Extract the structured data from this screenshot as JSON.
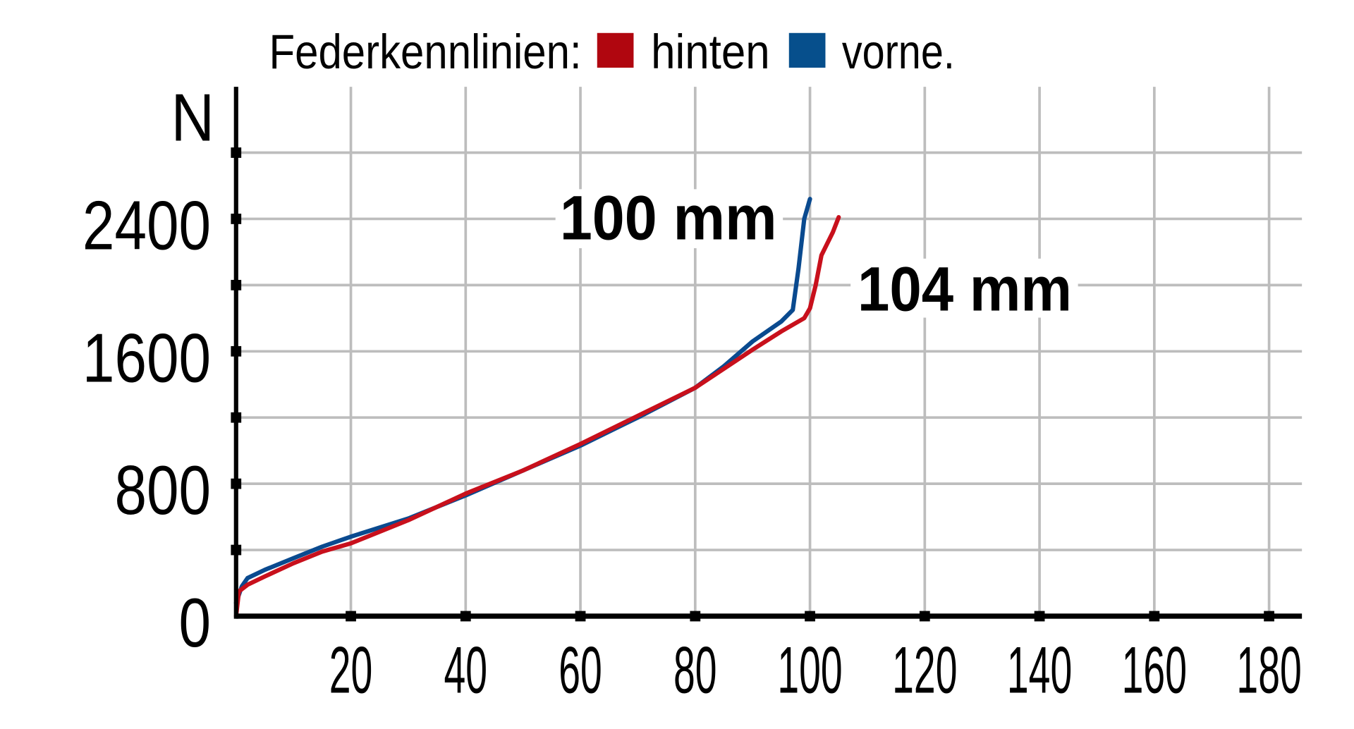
{
  "chart_data": {
    "type": "line",
    "title": "Federkennlinien:",
    "legend": [
      {
        "name": "hinten",
        "color": "#b0060f"
      },
      {
        "name": "vorne.",
        "color": "#064f8c"
      }
    ],
    "legend_placement": "top",
    "ylabel": "N",
    "xlabel": "",
    "xlim": [
      0,
      185
    ],
    "ylim": [
      0,
      2800
    ],
    "xticks": [
      20,
      40,
      60,
      80,
      100,
      120,
      140,
      160,
      180
    ],
    "yticks_labeled": [
      0,
      800,
      1600,
      2400
    ],
    "ygrid": [
      400,
      800,
      1200,
      1600,
      2000,
      2400,
      2800
    ],
    "grid": true,
    "series": [
      {
        "name": "hinten",
        "color": "#c8101c",
        "x": [
          0,
          0.5,
          2,
          5,
          10,
          15,
          20,
          30,
          40,
          50,
          60,
          70,
          80,
          90,
          95,
          99,
          100,
          101,
          102,
          104,
          105
        ],
        "y": [
          0,
          150,
          190,
          240,
          320,
          390,
          440,
          580,
          740,
          880,
          1040,
          1210,
          1380,
          1610,
          1720,
          1800,
          1860,
          2000,
          2180,
          2320,
          2410
        ]
      },
      {
        "name": "vorne",
        "color": "#0a4a8f",
        "x": [
          0,
          1,
          2,
          5,
          10,
          15,
          20,
          30,
          40,
          50,
          60,
          70,
          80,
          85,
          90,
          95,
          97,
          98,
          99,
          100
        ],
        "y": [
          80,
          180,
          230,
          280,
          350,
          420,
          480,
          590,
          730,
          880,
          1030,
          1200,
          1380,
          1510,
          1660,
          1780,
          1850,
          2100,
          2400,
          2520
        ]
      }
    ],
    "annotations": [
      {
        "text": "100 mm",
        "series": "vorne"
      },
      {
        "text": "104 mm",
        "series": "hinten"
      }
    ]
  }
}
